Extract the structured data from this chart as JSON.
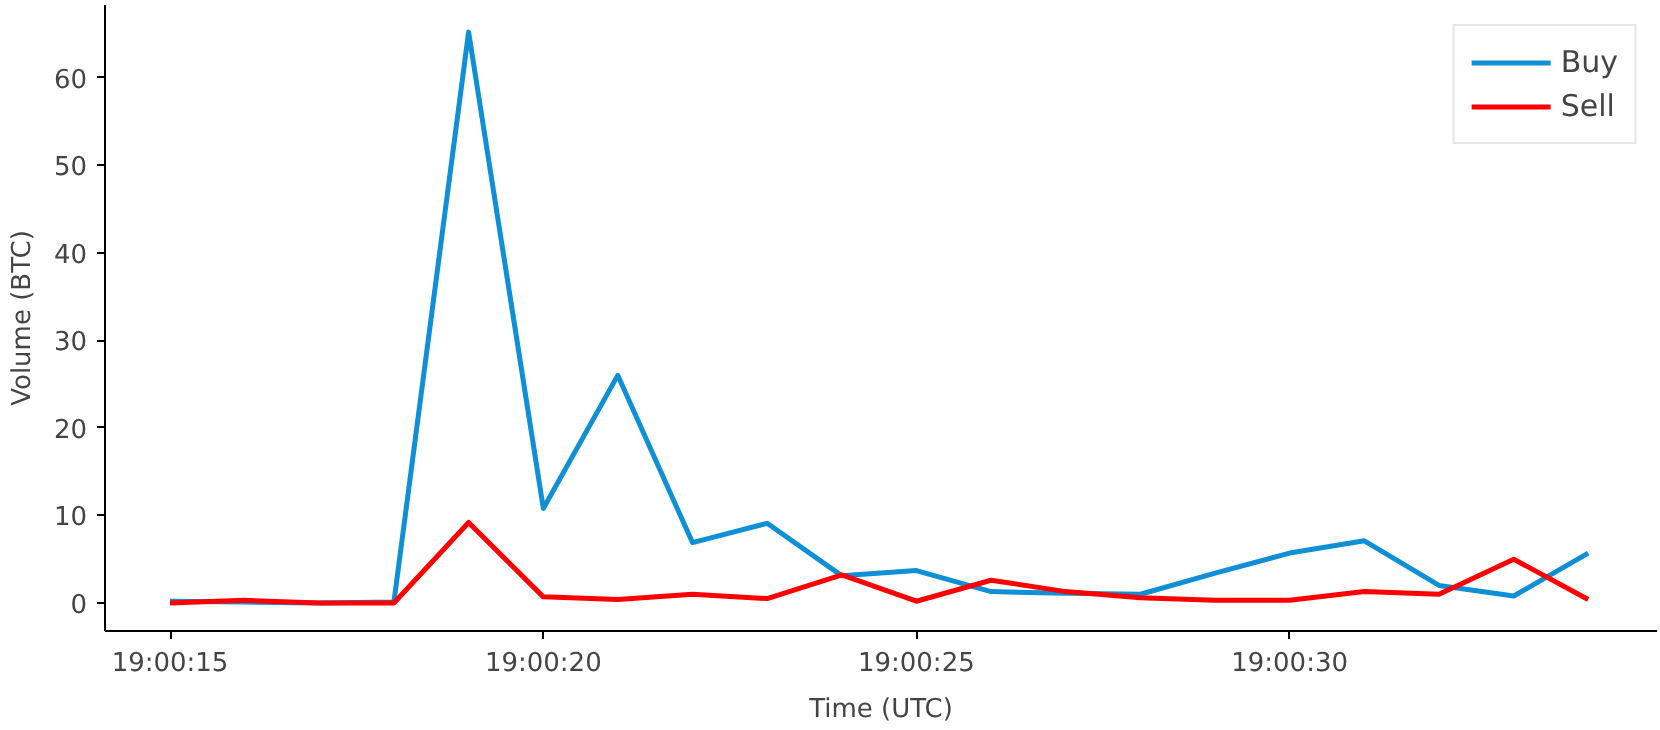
{
  "chart_data": {
    "type": "line",
    "xlabel": "Time (UTC)",
    "ylabel": "Volume (BTC)",
    "x": [
      19.004167,
      19.004444,
      19.004722,
      19.005,
      19.005278,
      19.005556,
      19.005833,
      19.006111,
      19.006389,
      19.006667,
      19.006944,
      19.007222,
      19.0075,
      19.007778,
      19.008056,
      19.008333,
      19.008611,
      19.008889,
      19.009167,
      19.009444
    ],
    "series": [
      {
        "name": "Buy",
        "color": "#0e8fd6",
        "values": [
          0.2,
          0.1,
          0.0,
          0.1,
          65.2,
          10.8,
          26.0,
          6.9,
          9.1,
          3.1,
          3.7,
          1.3,
          1.1,
          1.0,
          3.4,
          5.7,
          7.1,
          2.0,
          0.8,
          5.7
        ]
      },
      {
        "name": "Sell",
        "color": "#ff0000",
        "values": [
          0.0,
          0.3,
          0.0,
          0.0,
          9.2,
          0.7,
          0.4,
          1.0,
          0.5,
          3.2,
          0.2,
          2.6,
          1.3,
          0.6,
          0.3,
          0.3,
          1.3,
          1.0,
          5.0,
          0.4
        ]
      }
    ],
    "xlim": [
      19.003925,
      19.0097
    ],
    "xticks": [
      {
        "value": 19.004167,
        "label": "19:00:15"
      },
      {
        "value": 19.005556,
        "label": "19:00:20"
      },
      {
        "value": 19.006944,
        "label": "19:00:25"
      },
      {
        "value": 19.008333,
        "label": "19:00:30"
      }
    ],
    "ylim": [
      -3.2,
      68.3
    ],
    "yticks": [
      0,
      10,
      20,
      30,
      40,
      50,
      60
    ],
    "grid": false,
    "legend": "top right",
    "line_style": "solid",
    "marker": "none"
  }
}
